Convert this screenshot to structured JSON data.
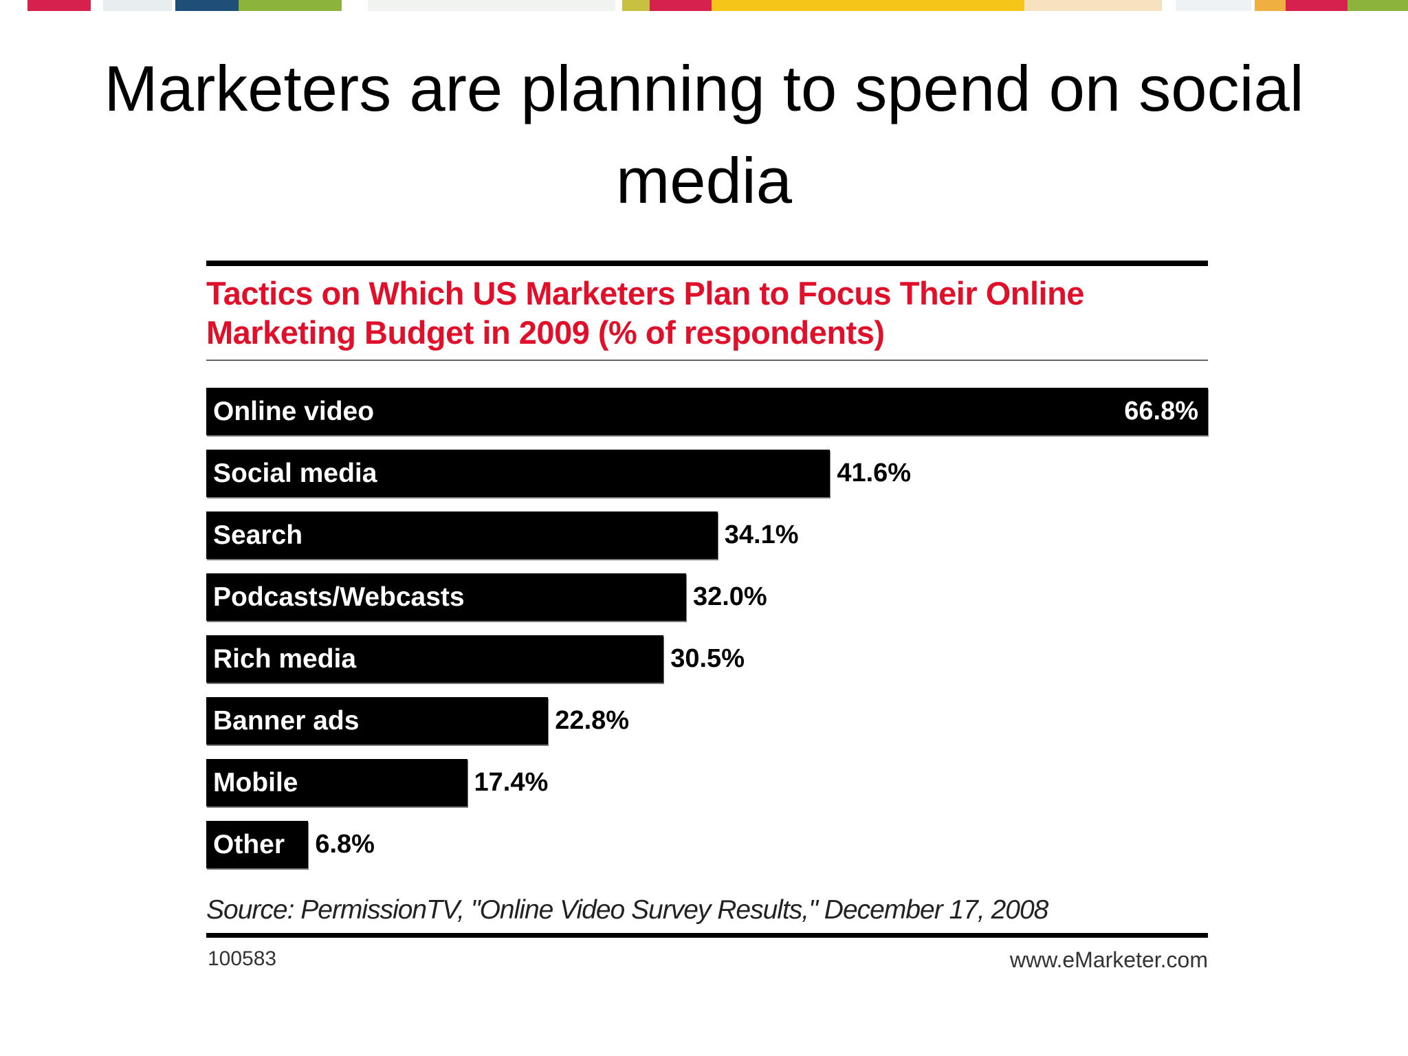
{
  "slide_title": "Marketers are planning to spend on social media",
  "chart_data": {
    "type": "bar",
    "orientation": "horizontal",
    "title": "Tactics on Which US Marketers Plan to Focus Their Online Marketing Budget in 2009 (% of respondents)",
    "categories": [
      "Online video",
      "Social media",
      "Search",
      "Podcasts/Webcasts",
      "Rich media",
      "Banner ads",
      "Mobile",
      "Other"
    ],
    "values": [
      66.8,
      41.6,
      34.1,
      32.0,
      30.5,
      22.8,
      17.4,
      6.8
    ],
    "value_labels": [
      "66.8%",
      "41.6%",
      "34.1%",
      "32.0%",
      "30.5%",
      "22.8%",
      "17.4%",
      "6.8%"
    ],
    "color": "#000000",
    "title_color": "#e0102a",
    "xlim": [
      0,
      66.8
    ],
    "source": "Source: PermissionTV, \"Online Video Survey Results,\" December 17, 2008",
    "chart_id": "100583",
    "site": "www.eMarketer.com"
  }
}
